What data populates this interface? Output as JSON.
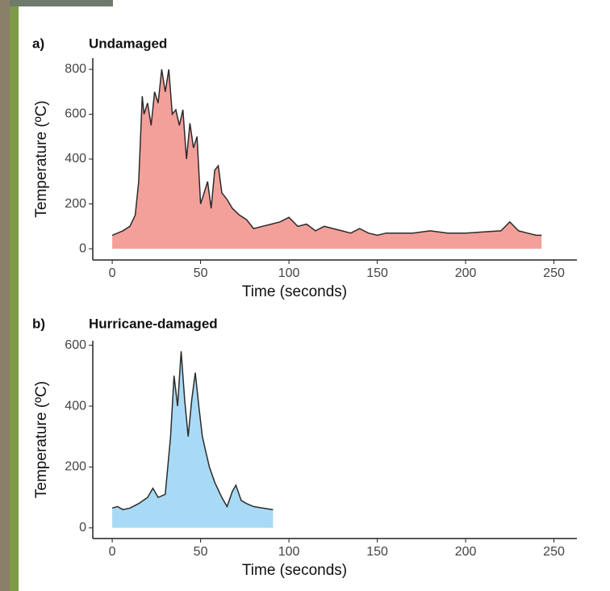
{
  "chart_data": [
    {
      "type": "area",
      "panel_label": "a)",
      "title": "Undamaged",
      "xlabel": "Time (seconds)",
      "ylabel": "Temperature (ºC)",
      "color": "#f4a09a",
      "line_color": "#2b2b2b",
      "x": [
        0,
        3,
        6,
        10,
        13,
        15,
        17,
        18,
        20,
        22,
        24,
        26,
        28,
        30,
        32,
        34,
        36,
        38,
        40,
        42,
        44,
        46,
        48,
        50,
        52,
        54,
        56,
        58,
        60,
        62,
        65,
        68,
        72,
        76,
        80,
        85,
        90,
        95,
        100,
        105,
        110,
        115,
        120,
        125,
        130,
        135,
        140,
        145,
        150,
        155,
        160,
        170,
        180,
        190,
        200,
        210,
        220,
        225,
        230,
        235,
        240,
        243
      ],
      "values": [
        60,
        70,
        80,
        100,
        150,
        300,
        680,
        600,
        650,
        550,
        700,
        650,
        800,
        700,
        800,
        600,
        620,
        550,
        620,
        400,
        560,
        450,
        500,
        200,
        250,
        300,
        180,
        350,
        370,
        250,
        220,
        180,
        150,
        130,
        90,
        100,
        110,
        120,
        140,
        100,
        110,
        80,
        100,
        90,
        80,
        70,
        90,
        70,
        60,
        70,
        70,
        70,
        80,
        70,
        70,
        75,
        80,
        120,
        80,
        70,
        60,
        60
      ],
      "xlim": [
        -11,
        263
      ],
      "ylim": [
        -50,
        850
      ],
      "xticks": [
        0,
        50,
        100,
        150,
        200,
        250
      ],
      "yticks": [
        0,
        200,
        400,
        600,
        800
      ]
    },
    {
      "type": "area",
      "panel_label": "b)",
      "title": "Hurricane-damaged",
      "xlabel": "Time (seconds)",
      "ylabel": "Temperature (ºC)",
      "color": "#a8daf5",
      "line_color": "#2b2b2b",
      "x": [
        0,
        3,
        6,
        10,
        15,
        20,
        23,
        26,
        30,
        33,
        35,
        37,
        39,
        41,
        43,
        45,
        47,
        49,
        51,
        53,
        55,
        58,
        62,
        65,
        68,
        70,
        73,
        76,
        80,
        85,
        91
      ],
      "values": [
        65,
        70,
        60,
        65,
        80,
        100,
        130,
        100,
        110,
        300,
        500,
        400,
        580,
        420,
        300,
        420,
        510,
        400,
        300,
        250,
        200,
        150,
        100,
        70,
        120,
        140,
        90,
        80,
        70,
        65,
        60
      ],
      "xlim": [
        -11,
        263
      ],
      "ylim": [
        -35,
        615
      ],
      "xticks": [
        0,
        50,
        100,
        150,
        200,
        250
      ],
      "yticks": [
        0,
        200,
        400,
        600
      ]
    }
  ]
}
